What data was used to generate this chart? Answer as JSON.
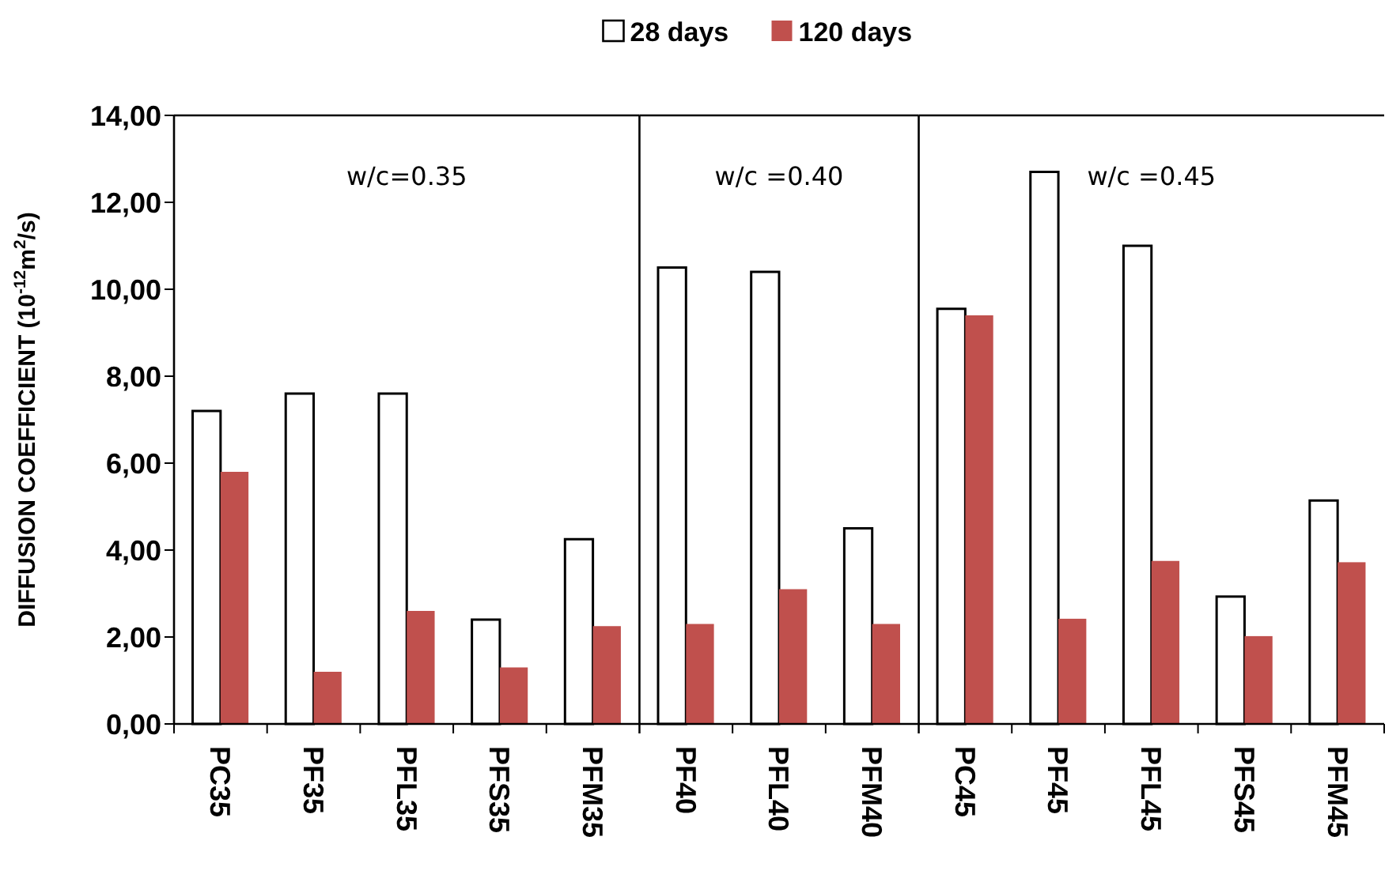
{
  "chart_data": [
    {
      "type": "bar",
      "categories": [
        "PC35",
        "PF35",
        "PFL35",
        "PFS35",
        "PFM35"
      ],
      "series": [
        {
          "color": "#ffffff",
          "values": [
            7.2,
            7.6,
            7.6,
            2.4,
            4.25
          ]
        },
        {
          "color": "#c0504d",
          "values": [
            5.8,
            1.2,
            2.6,
            1.3,
            2.25
          ]
        }
      ],
      "ylabel": "DIFFUSION COEFFICIENT (10$^{-12}$m$^{2}$/s)",
      "ylim": [
        0,
        14
      ],
      "yticks": [
        {
          "value": 0,
          "label": "0,00"
        },
        {
          "value": 2,
          "label": "2,00"
        },
        {
          "value": 4,
          "label": "4,00"
        },
        {
          "value": 6,
          "label": "6,00"
        },
        {
          "value": 8,
          "label": "8,00"
        },
        {
          "value": 10,
          "label": "10,00"
        },
        {
          "value": 12,
          "label": "12,00"
        },
        {
          "value": 14,
          "label": "14,00"
        }
      ],
      "annotations": [
        "w/c=0.35"
      ]
    },
    {
      "type": "bar",
      "categories": [
        "PF40",
        "PFL40",
        "PFM40"
      ],
      "series": [
        {
          "name": "28 days",
          "color": "#ffffff",
          "values": [
            10.5,
            10.4,
            4.5
          ]
        },
        {
          "name": "120 days",
          "color": "#c0504d",
          "values": [
            2.3,
            3.1,
            2.3
          ]
        }
      ],
      "ylim": [
        0,
        14
      ],
      "tick_labels": "x",
      "annotations": [
        "w/c =0.40"
      ],
      "legend": "top"
    },
    {
      "type": "bar",
      "categories": [
        "PC45",
        "PF45",
        "PFL45",
        "PFS45",
        "PFM45"
      ],
      "series": [
        {
          "color": "#ffffff",
          "values": [
            9.55,
            12.7,
            11.0,
            2.93,
            5.14
          ]
        },
        {
          "color": "#c0504d",
          "values": [
            9.4,
            2.42,
            3.75,
            2.02,
            3.72
          ]
        }
      ],
      "ylim": [
        0,
        14
      ],
      "tick_labels": "x",
      "annotations": [
        "w/c =0.45"
      ]
    }
  ]
}
